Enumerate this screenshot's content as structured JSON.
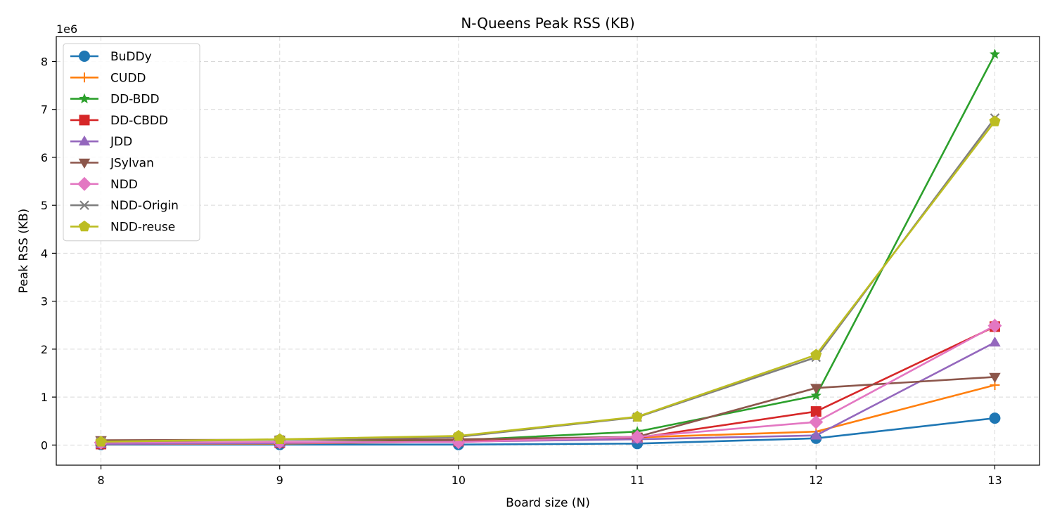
{
  "chart_data": {
    "type": "line",
    "title": "N-Queens Peak RSS (KB)",
    "xlabel": "Board size (N)",
    "ylabel": "Peak RSS (KB)",
    "y_offset_label": "1e6",
    "y_scale_factor": 1000000,
    "x": [
      8,
      9,
      10,
      11,
      12,
      13
    ],
    "xlim": [
      7.75,
      13.25
    ],
    "ylim": [
      -0.42,
      8.52
    ],
    "x_ticks": [
      8,
      9,
      10,
      11,
      12,
      13
    ],
    "y_ticks": [
      0,
      1,
      2,
      3,
      4,
      5,
      6,
      7,
      8
    ],
    "grid": true,
    "legend_position": "top-left",
    "series": [
      {
        "name": "BuDDy",
        "color": "#1f77b4",
        "marker": "circle",
        "values": [
          0.01,
          0.01,
          0.01,
          0.03,
          0.14,
          0.56
        ]
      },
      {
        "name": "CUDD",
        "color": "#ff7f0e",
        "marker": "plus",
        "values": [
          0.02,
          0.03,
          0.07,
          0.16,
          0.28,
          1.25
        ]
      },
      {
        "name": "DD-BDD",
        "color": "#2ca02c",
        "marker": "star",
        "values": [
          0.03,
          0.05,
          0.1,
          0.28,
          1.03,
          8.15
        ]
      },
      {
        "name": "DD-CBDD",
        "color": "#d62728",
        "marker": "square",
        "values": [
          0.02,
          0.05,
          0.08,
          0.15,
          0.7,
          2.47
        ]
      },
      {
        "name": "JDD",
        "color": "#9467bd",
        "marker": "triangle-up",
        "values": [
          0.02,
          0.04,
          0.07,
          0.12,
          0.2,
          2.14
        ]
      },
      {
        "name": "JSylvan",
        "color": "#8c564b",
        "marker": "triangle-down",
        "values": [
          0.1,
          0.11,
          0.12,
          0.17,
          1.19,
          1.42
        ]
      },
      {
        "name": "NDD",
        "color": "#e377c2",
        "marker": "diamond",
        "values": [
          0.05,
          0.06,
          0.06,
          0.17,
          0.48,
          2.49
        ]
      },
      {
        "name": "NDD-Origin",
        "color": "#7f7f7f",
        "marker": "x",
        "values": [
          0.07,
          0.11,
          0.17,
          0.58,
          1.83,
          6.82
        ]
      },
      {
        "name": "NDD-reuse",
        "color": "#bcbd22",
        "marker": "pentagon",
        "values": [
          0.07,
          0.12,
          0.19,
          0.59,
          1.88,
          6.75
        ]
      }
    ]
  }
}
